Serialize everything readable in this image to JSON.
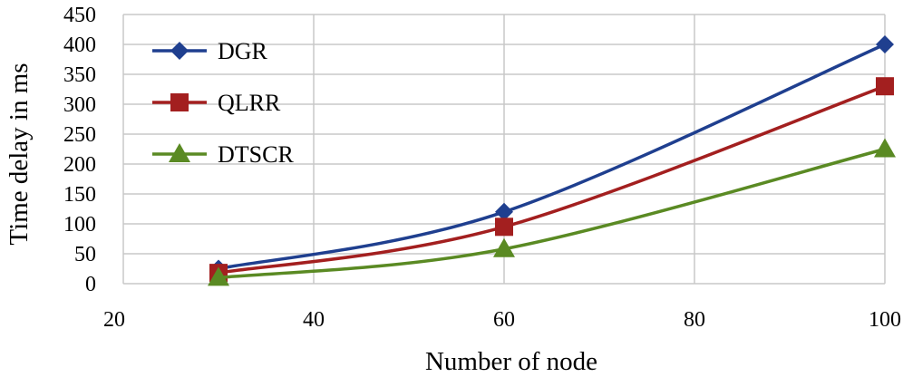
{
  "chart_data": {
    "type": "line",
    "x": [
      30,
      60,
      100
    ],
    "series": [
      {
        "name": "DGR",
        "values": [
          25,
          120,
          400
        ],
        "color": "#1F3F8F",
        "marker": "diamond"
      },
      {
        "name": "QLRR",
        "values": [
          18,
          95,
          330
        ],
        "color": "#A31F1F",
        "marker": "square"
      },
      {
        "name": "DTSCR",
        "values": [
          10,
          58,
          225
        ],
        "color": "#5A8A23",
        "marker": "triangle"
      }
    ],
    "xlabel": "Number of node",
    "ylabel": "Time delay in ms",
    "xlim": [
      20,
      100
    ],
    "ylim": [
      0,
      450
    ],
    "xticks": [
      "20",
      "40",
      "60",
      "80",
      "100"
    ],
    "yticks": [
      "0",
      "50",
      "100",
      "150",
      "200",
      "250",
      "300",
      "350",
      "400",
      "450"
    ],
    "grid": true,
    "smooth": true,
    "legend": "top-left"
  }
}
